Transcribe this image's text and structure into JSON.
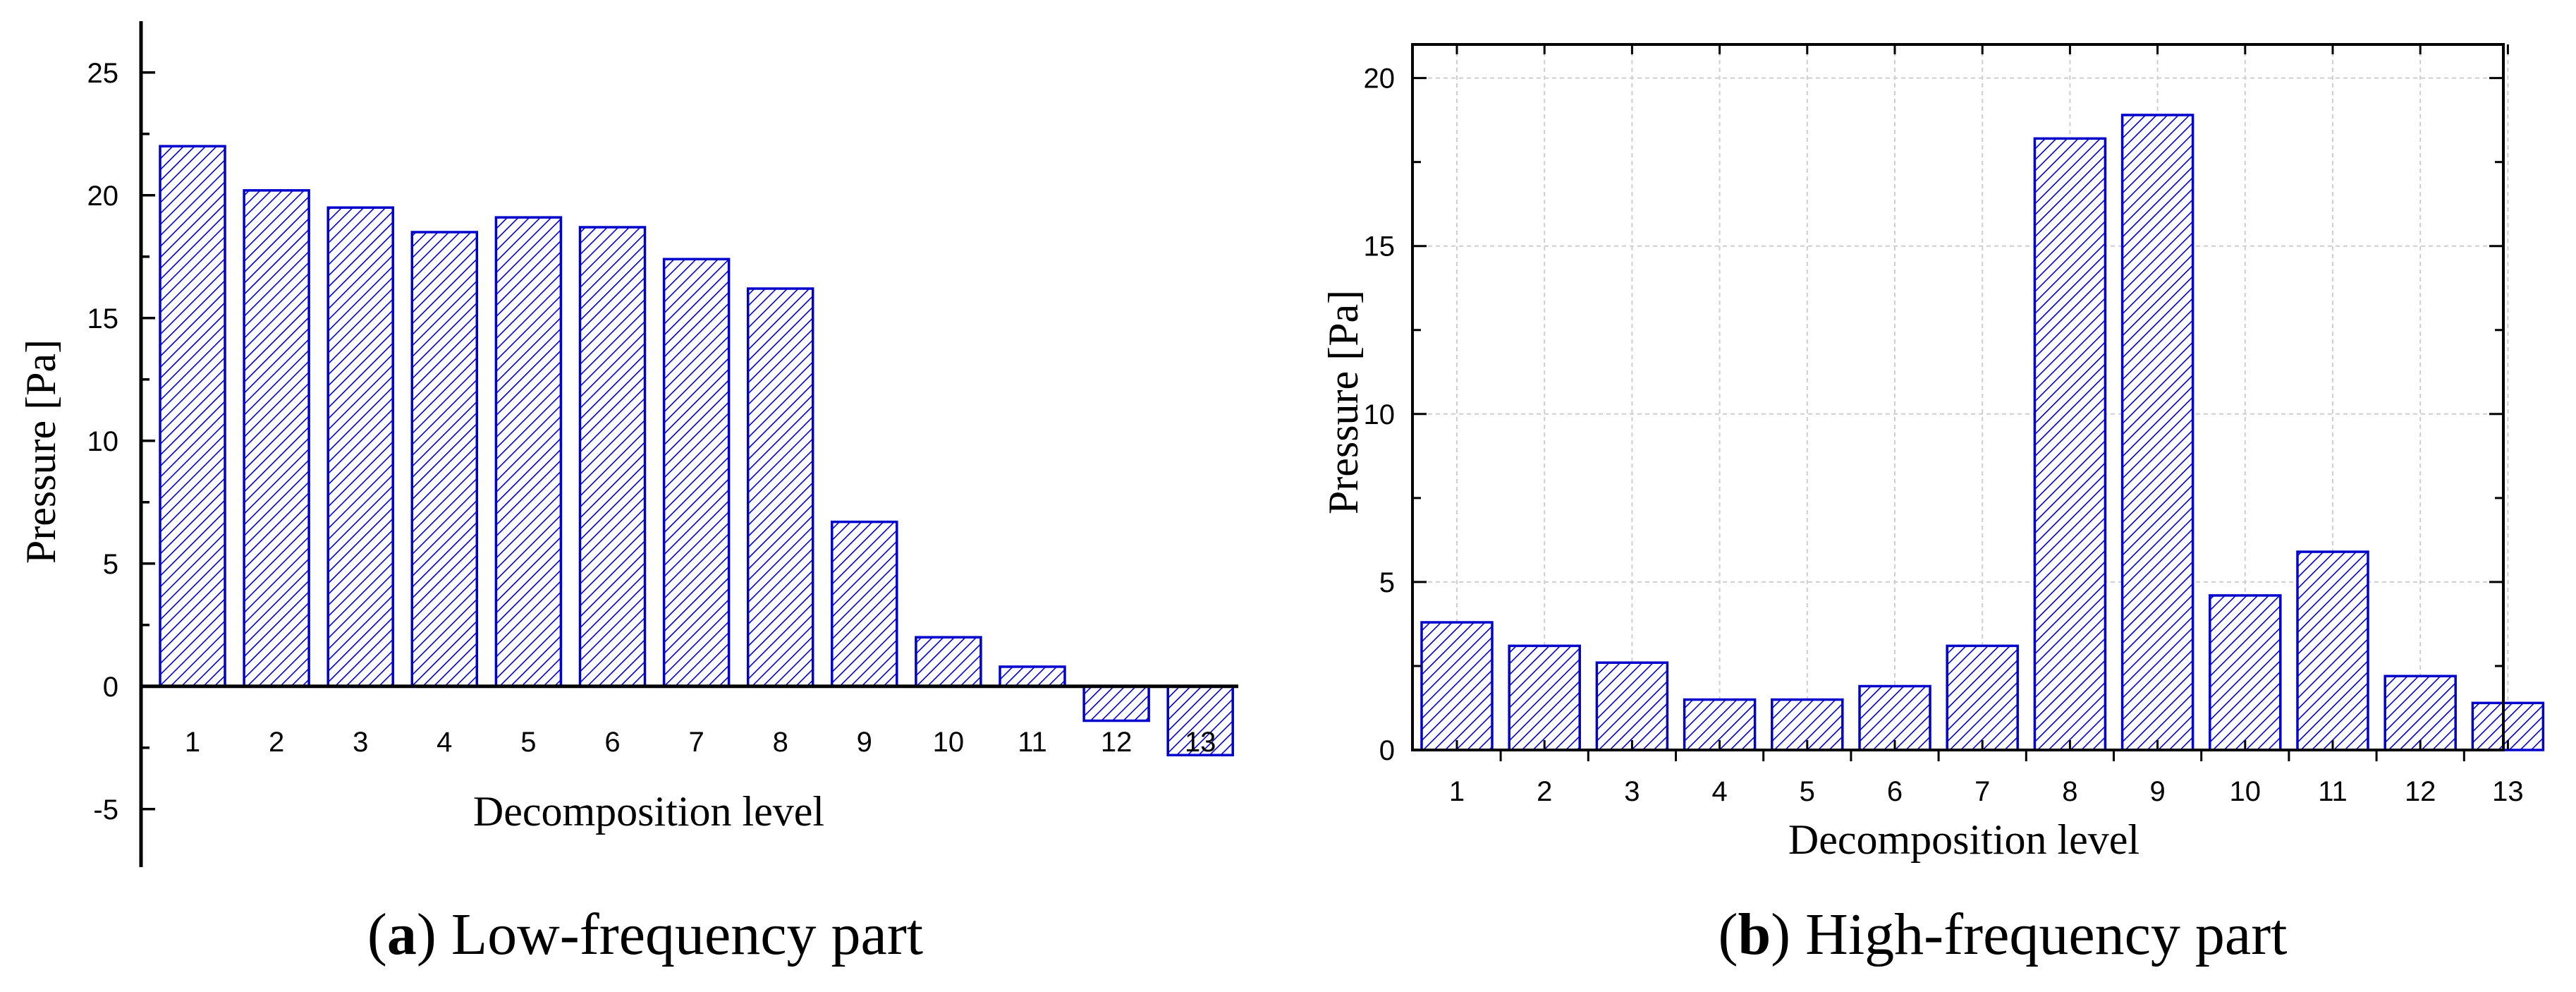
{
  "chart_data": [
    {
      "type": "bar",
      "panel": "a",
      "caption_prefix": "a",
      "caption_text": "Low-frequency part",
      "xlabel": "Decomposition level",
      "ylabel": "Pressure [Pa]",
      "categories": [
        "1",
        "2",
        "3",
        "4",
        "5",
        "6",
        "7",
        "8",
        "9",
        "10",
        "11",
        "12",
        "13"
      ],
      "values": [
        22.0,
        20.2,
        19.5,
        18.5,
        19.1,
        18.7,
        17.4,
        16.2,
        6.7,
        2.0,
        0.8,
        -1.4,
        -2.8
      ],
      "ylim": [
        -6.5,
        26
      ],
      "yticks": [
        -5,
        0,
        5,
        10,
        15,
        20,
        25
      ],
      "ytick_labels": [
        "-5",
        "0",
        "5",
        "10",
        "15",
        "20",
        "25"
      ],
      "grid": false,
      "bar_fill": "hatched",
      "bar_color": "#0000cc"
    },
    {
      "type": "bar",
      "panel": "b",
      "caption_prefix": "b",
      "caption_text": "High-frequency part",
      "xlabel": "Decomposition level",
      "ylabel": "Pressure [Pa]",
      "categories": [
        "1",
        "2",
        "3",
        "4",
        "5",
        "6",
        "7",
        "8",
        "9",
        "10",
        "11",
        "12",
        "13"
      ],
      "values": [
        3.8,
        3.1,
        2.6,
        1.5,
        1.5,
        1.9,
        3.1,
        18.2,
        18.9,
        4.6,
        5.9,
        2.2,
        1.4
      ],
      "ylim": [
        0,
        21
      ],
      "yticks": [
        0,
        5,
        10,
        15,
        20
      ],
      "ytick_labels": [
        "0",
        "5",
        "10",
        "15",
        "20"
      ],
      "grid": true,
      "bar_fill": "hatched",
      "bar_color": "#0000cc"
    }
  ]
}
